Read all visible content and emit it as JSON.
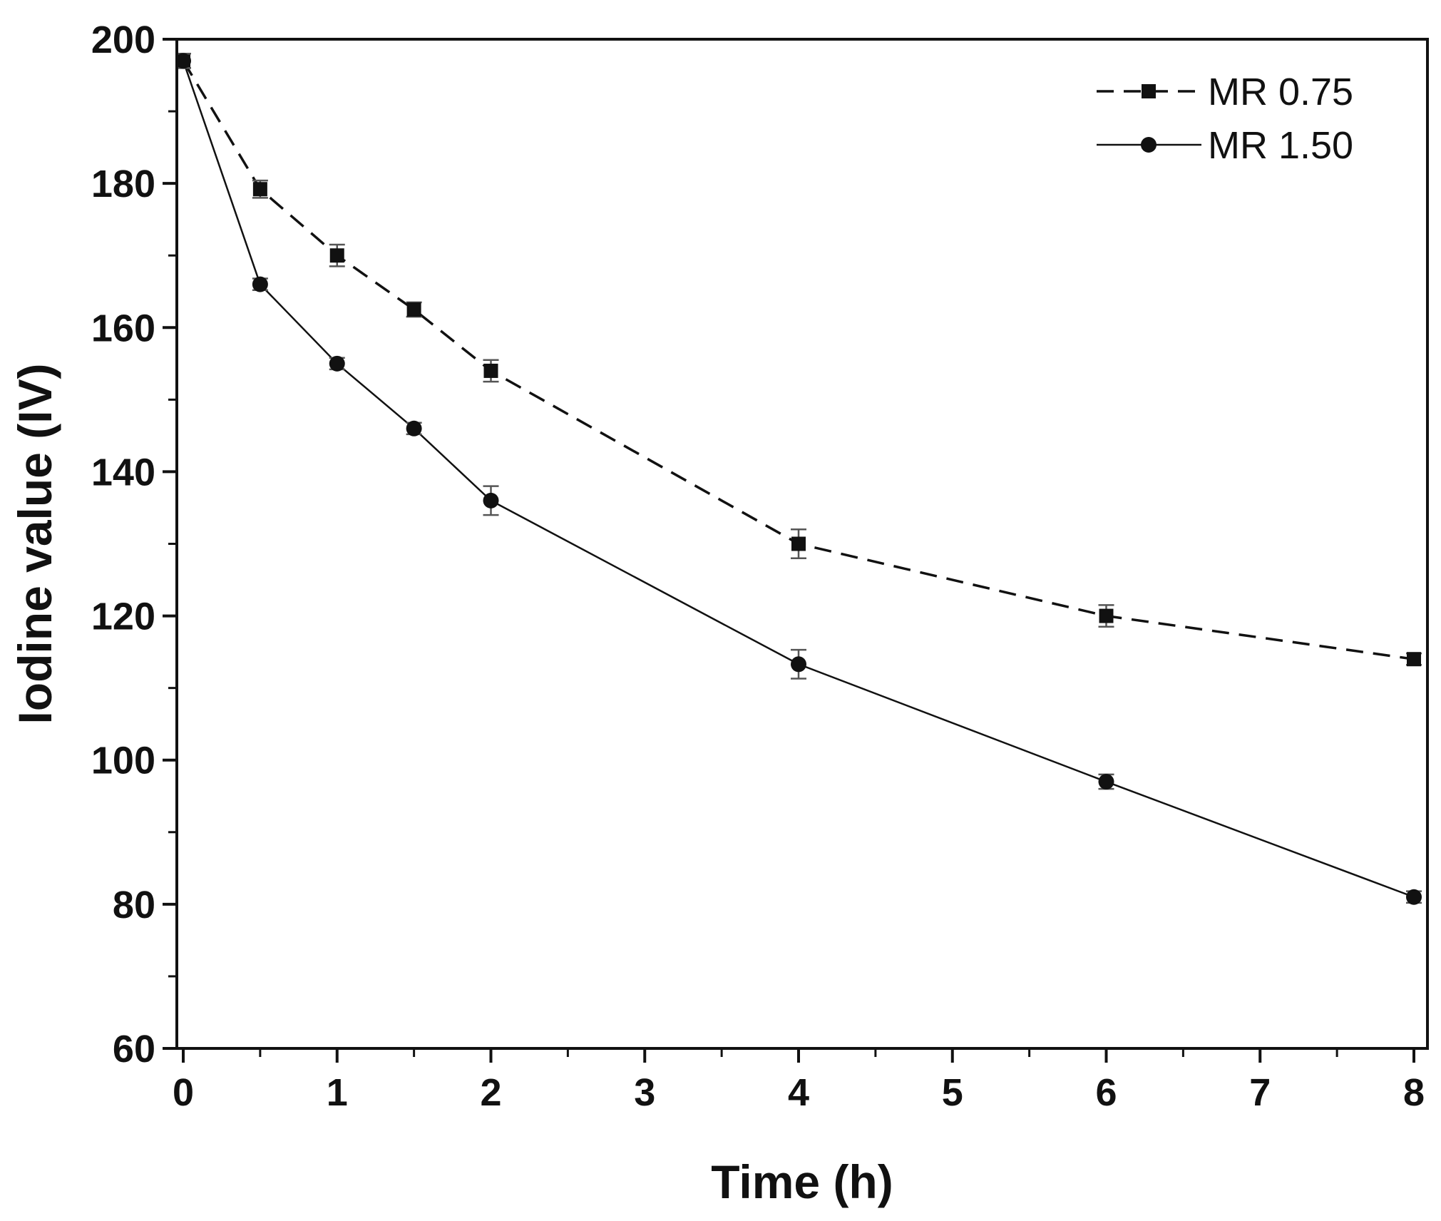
{
  "chart_data": {
    "type": "line",
    "title": "",
    "xlabel": "Time (h)",
    "ylabel": "Iodine value (IV)",
    "xlim": [
      0,
      8
    ],
    "ylim": [
      60,
      200
    ],
    "xticks": [
      0,
      1,
      2,
      3,
      4,
      5,
      6,
      7,
      8
    ],
    "yticks": [
      60,
      80,
      100,
      120,
      140,
      160,
      180,
      200
    ],
    "x_tick_labels": [
      "0",
      "1",
      "2",
      "3",
      "4",
      "5",
      "6",
      "7",
      "8"
    ],
    "y_tick_labels": [
      "60",
      "80",
      "100",
      "120",
      "140",
      "160",
      "180",
      "200"
    ],
    "grid": false,
    "legend_position": "top-right",
    "series": [
      {
        "name": "MR 0.75",
        "line_style": "dashed",
        "marker": "square",
        "color": "#111111",
        "points": [
          {
            "x": 0,
            "y": 197,
            "err": 1.0
          },
          {
            "x": 0.5,
            "y": 179.2,
            "err": 1.2
          },
          {
            "x": 1,
            "y": 170,
            "err": 1.5
          },
          {
            "x": 1.5,
            "y": 162.5,
            "err": 1.0
          },
          {
            "x": 2,
            "y": 154,
            "err": 1.5
          },
          {
            "x": 4,
            "y": 130,
            "err": 2.0
          },
          {
            "x": 6,
            "y": 120,
            "err": 1.5
          },
          {
            "x": 8,
            "y": 114,
            "err": 0.8
          }
        ]
      },
      {
        "name": "MR 1.50",
        "line_style": "solid",
        "marker": "circle",
        "color": "#111111",
        "points": [
          {
            "x": 0,
            "y": 197,
            "err": 1.0
          },
          {
            "x": 0.5,
            "y": 166,
            "err": 0.8
          },
          {
            "x": 1,
            "y": 155,
            "err": 0.8
          },
          {
            "x": 1.5,
            "y": 146,
            "err": 0.8
          },
          {
            "x": 2,
            "y": 136,
            "err": 2.0
          },
          {
            "x": 4,
            "y": 113.3,
            "err": 2.0
          },
          {
            "x": 6,
            "y": 97,
            "err": 1.0
          },
          {
            "x": 8,
            "y": 81,
            "err": 0.8
          }
        ]
      }
    ]
  }
}
